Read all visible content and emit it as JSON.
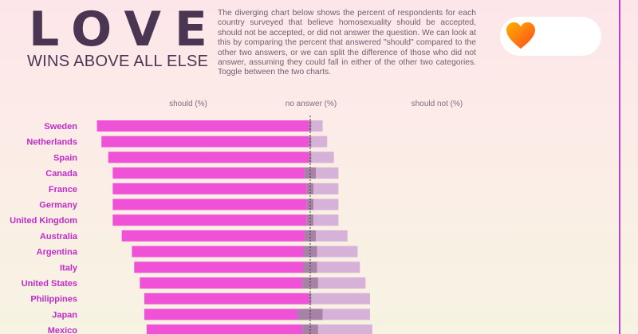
{
  "header": {
    "title": "LOVE",
    "subtitle": "WINS ABOVE ALL ELSE",
    "description": "The diverging chart below shows the percent of respondents for each country surveyed that believe homosexuality should be accepted, should not be accepted, or did not answer the question. We can look at this by comparing the percent that answered \"should\" compared to the other two answers, or we can split the difference of those who did not answer, assuming they could fall in either of the other two categories. Toggle between the two charts."
  },
  "toggle": {
    "icon": "heart-icon"
  },
  "colors": {
    "should": "#ef52d6",
    "no_answer": "#a682a6",
    "should_not": "#d6b2d8",
    "label": "#c22cc8",
    "accent_line": "#c040c8"
  },
  "chart_data": {
    "type": "bar",
    "stacked": "diverging",
    "column_headers": [
      "should (%)",
      "no answer (%)",
      "should not (%)"
    ],
    "categories": [
      "Sweden",
      "Netherlands",
      "Spain",
      "Canada",
      "France",
      "Germany",
      "United Kingdom",
      "Australia",
      "Argentina",
      "Italy",
      "United States",
      "Philippines",
      "Japan",
      "Mexico"
    ],
    "series": [
      {
        "name": "should (%)",
        "values": [
          94,
          92,
          89,
          85,
          86,
          86,
          86,
          81,
          76,
          75,
          72,
          73,
          68,
          69
        ]
      },
      {
        "name": "no answer (%)",
        "values": [
          1,
          1,
          1,
          5,
          3,
          3,
          3,
          5,
          6,
          6,
          7,
          1,
          11,
          7
        ]
      },
      {
        "name": "should not (%)",
        "values": [
          5,
          7,
          10,
          10,
          11,
          11,
          11,
          14,
          18,
          19,
          21,
          26,
          21,
          24
        ]
      }
    ],
    "grid": false,
    "legend": "top"
  }
}
